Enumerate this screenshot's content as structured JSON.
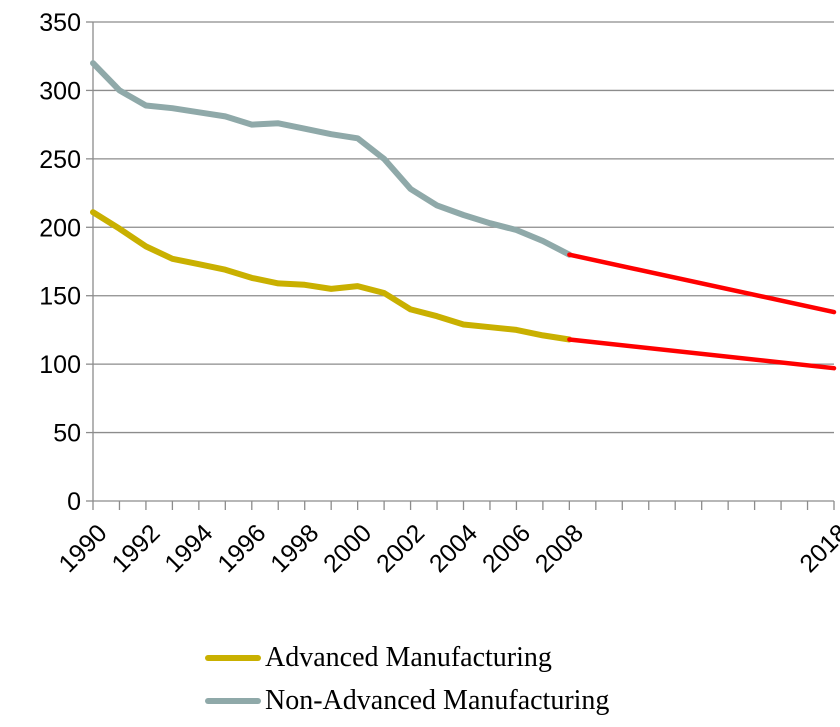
{
  "chart_data": {
    "type": "line",
    "title": "",
    "xlabel": "",
    "ylabel": "",
    "ylim": [
      0,
      350
    ],
    "yticks": [
      0,
      50,
      100,
      150,
      200,
      250,
      300,
      350
    ],
    "xlim": [
      1990,
      2018
    ],
    "xtick_labels": [
      "1990",
      "1992",
      "1994",
      "1996",
      "1998",
      "2000",
      "2002",
      "2004",
      "2006",
      "2008",
      "2018"
    ],
    "grid": "horizontal",
    "legend_position": "bottom",
    "series": [
      {
        "name": "Advanced Manufacturing",
        "color": "#c9b000",
        "x": [
          1990,
          1991,
          1992,
          1993,
          1994,
          1995,
          1996,
          1997,
          1998,
          1999,
          2000,
          2001,
          2002,
          2003,
          2004,
          2005,
          2006,
          2007,
          2008
        ],
        "values": [
          211,
          199,
          186,
          177,
          173,
          169,
          163,
          159,
          158,
          155,
          157,
          152,
          140,
          135,
          129,
          127,
          125,
          121,
          118
        ]
      },
      {
        "name": "Non-Advanced Manufacturing",
        "color": "#8fa9a9",
        "x": [
          1990,
          1991,
          1992,
          1993,
          1994,
          1995,
          1996,
          1997,
          1998,
          1999,
          2000,
          2001,
          2002,
          2003,
          2004,
          2005,
          2006,
          2007,
          2008
        ],
        "values": [
          320,
          300,
          289,
          287,
          284,
          281,
          275,
          276,
          272,
          268,
          265,
          250,
          228,
          216,
          209,
          203,
          198,
          190,
          180
        ]
      }
    ],
    "projections": [
      {
        "color": "#ff0000",
        "x": [
          2008,
          2018
        ],
        "values": [
          118,
          97
        ]
      },
      {
        "color": "#ff0000",
        "x": [
          2008,
          2018
        ],
        "values": [
          180,
          138
        ]
      }
    ]
  }
}
